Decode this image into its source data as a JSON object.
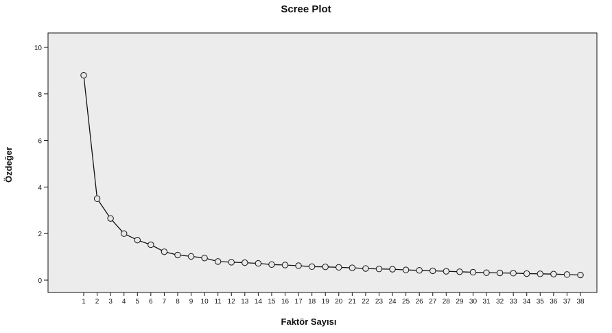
{
  "chart_data": {
    "type": "line",
    "title": "Scree Plot",
    "xlabel": "Faktör Sayısı",
    "ylabel": "Özdeğer",
    "ylim": [
      0,
      10
    ],
    "yticks": [
      0,
      2,
      4,
      6,
      8,
      10
    ],
    "x": [
      1,
      2,
      3,
      4,
      5,
      6,
      7,
      8,
      9,
      10,
      11,
      12,
      13,
      14,
      15,
      16,
      17,
      18,
      19,
      20,
      21,
      22,
      23,
      24,
      25,
      26,
      27,
      28,
      29,
      30,
      31,
      32,
      33,
      34,
      35,
      36,
      37,
      38
    ],
    "series": [
      {
        "values": [
          8.8,
          3.5,
          2.65,
          2.0,
          1.72,
          1.52,
          1.22,
          1.08,
          1.02,
          0.95,
          0.8,
          0.77,
          0.75,
          0.72,
          0.67,
          0.65,
          0.62,
          0.58,
          0.57,
          0.55,
          0.53,
          0.5,
          0.48,
          0.47,
          0.44,
          0.42,
          0.4,
          0.38,
          0.36,
          0.34,
          0.32,
          0.31,
          0.3,
          0.28,
          0.27,
          0.26,
          0.24,
          0.22
        ]
      }
    ],
    "grid": false,
    "colors": {
      "plot_background": "#ececec",
      "line": "#111111",
      "marker_fill": "#e8e8e8"
    }
  }
}
